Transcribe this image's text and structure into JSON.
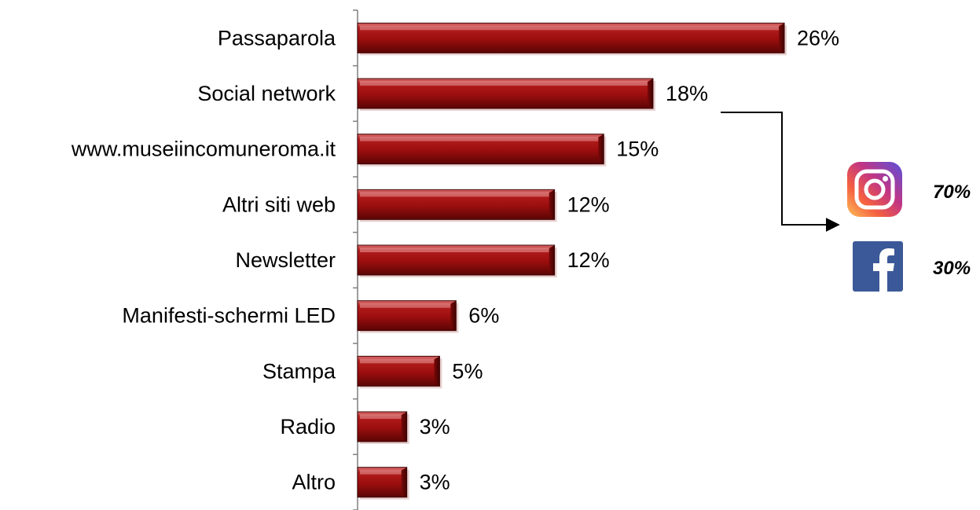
{
  "chart_data": {
    "type": "bar",
    "orientation": "horizontal",
    "categories": [
      "Passaparola",
      "Social network",
      "www.museiincomuneroma.it",
      "Altri siti web",
      "Newsletter",
      "Manifesti-schermi LED",
      "Stampa",
      "Radio",
      "Altro"
    ],
    "values": [
      26,
      18,
      15,
      12,
      12,
      6,
      5,
      3,
      3
    ],
    "value_labels": [
      "26%",
      "18%",
      "15%",
      "12%",
      "12%",
      "6%",
      "5%",
      "3%",
      "3%"
    ],
    "xlim": [
      0,
      30
    ],
    "grid": false,
    "bar_color": "#9b0e0e",
    "breakdown": {
      "source_category": "Social network",
      "items": [
        {
          "icon": "instagram-icon",
          "value": 70,
          "label": "70%"
        },
        {
          "icon": "facebook-icon",
          "value": 30,
          "label": "30%"
        }
      ]
    }
  }
}
